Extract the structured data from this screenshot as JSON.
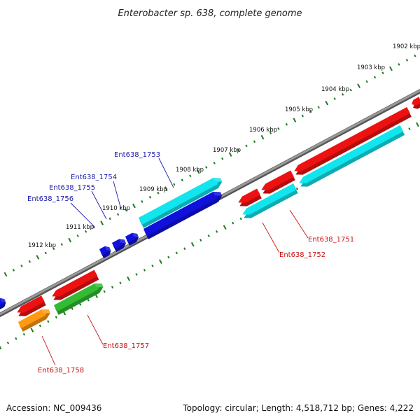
{
  "title": "Enterobacter sp. 638, complete genome",
  "accession": "Accession: NC_009436",
  "summary": "Topology: circular; Length: 4,518,712 bp; Genes: 4,222",
  "ruler": {
    "tick_labels": [
      "1902 kbp",
      "1903 kbp",
      "1904 kbp",
      "1905 kbp",
      "1906 kbp",
      "1907 kbp",
      "1908 kbp",
      "1909 kbp",
      "1910 kbp",
      "1911 kbp",
      "1912 kbp"
    ]
  },
  "gene_labels": {
    "forward": [
      "Ent638_1753",
      "Ent638_1754",
      "Ent638_1755",
      "Ent638_1756"
    ],
    "reverse": [
      "Ent638_1751",
      "Ent638_1752",
      "Ent638_1757",
      "Ent638_1758"
    ]
  },
  "colors": {
    "forward_label": "#1a1aa8",
    "reverse_label": "#cc1111",
    "backbone": "#888888",
    "ruler": "#1f7a1f",
    "red": "#ee1111",
    "blue": "#1111dd",
    "cyan": "#11e5ee",
    "green": "#33bb33",
    "orange": "#ff9911"
  }
}
